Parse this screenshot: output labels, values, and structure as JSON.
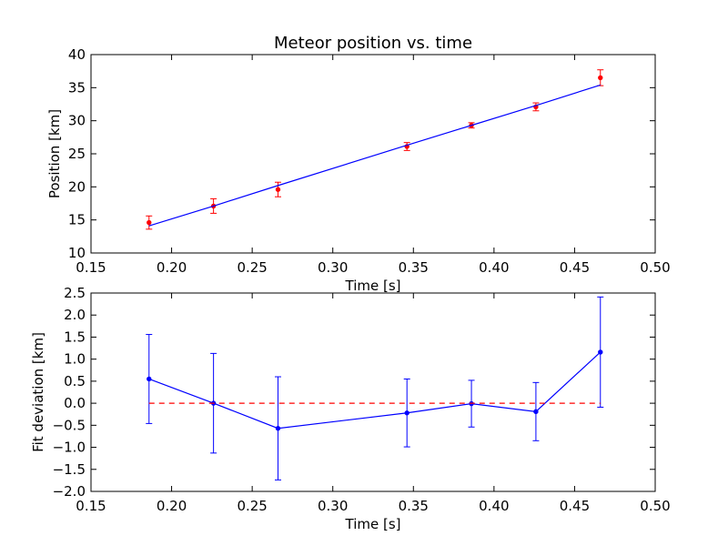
{
  "chart_data": [
    {
      "type": "scatter",
      "title": "Meteor position vs. time",
      "xlabel": "Time [s]",
      "ylabel": "Position [km]",
      "xlim": [
        0.15,
        0.5
      ],
      "ylim": [
        10,
        40
      ],
      "xticks": [
        0.15,
        0.2,
        0.25,
        0.3,
        0.35,
        0.4,
        0.45,
        0.5
      ],
      "xtick_labels": [
        "0.15",
        "0.20",
        "0.25",
        "0.30",
        "0.35",
        "0.40",
        "0.45",
        "0.50"
      ],
      "yticks": [
        10,
        15,
        20,
        25,
        30,
        35,
        40
      ],
      "ytick_labels": [
        "10",
        "15",
        "20",
        "25",
        "30",
        "35",
        "40"
      ],
      "grid": false,
      "series": [
        {
          "kind": "errorbar-points",
          "color": "#ff0000",
          "x": [
            0.186,
            0.226,
            0.266,
            0.346,
            0.386,
            0.426,
            0.466
          ],
          "y": [
            14.6,
            17.1,
            19.6,
            26.1,
            29.3,
            32.1,
            36.5
          ],
          "yerr": [
            1.0,
            1.1,
            1.1,
            0.6,
            0.4,
            0.6,
            1.2
          ]
        },
        {
          "kind": "line",
          "color": "#0000ff",
          "x": [
            0.186,
            0.226,
            0.266,
            0.346,
            0.386,
            0.426,
            0.466
          ],
          "y": [
            14.1,
            17.1,
            20.2,
            26.3,
            29.3,
            32.3,
            35.4
          ]
        }
      ]
    },
    {
      "type": "line",
      "title": "",
      "xlabel": "Time [s]",
      "ylabel": "Fit deviation [km]",
      "xlim": [
        0.15,
        0.5
      ],
      "ylim": [
        -2.0,
        2.5
      ],
      "xticks": [
        0.15,
        0.2,
        0.25,
        0.3,
        0.35,
        0.4,
        0.45,
        0.5
      ],
      "xtick_labels": [
        "0.15",
        "0.20",
        "0.25",
        "0.30",
        "0.35",
        "0.40",
        "0.45",
        "0.50"
      ],
      "yticks": [
        -2.0,
        -1.5,
        -1.0,
        -0.5,
        0.0,
        0.5,
        1.0,
        1.5,
        2.0,
        2.5
      ],
      "ytick_labels": [
        "−2.0",
        "−1.5",
        "−1.0",
        "−0.5",
        "0.0",
        "0.5",
        "1.0",
        "1.5",
        "2.0",
        "2.5"
      ],
      "grid": false,
      "series": [
        {
          "kind": "errorbar-line",
          "color": "#0000ff",
          "x": [
            0.186,
            0.226,
            0.266,
            0.346,
            0.386,
            0.426,
            0.466
          ],
          "y": [
            0.55,
            0.0,
            -0.57,
            -0.22,
            -0.01,
            -0.19,
            1.16
          ],
          "yerr": [
            1.01,
            1.13,
            1.17,
            0.77,
            0.53,
            0.66,
            1.25
          ]
        },
        {
          "kind": "dashed-line",
          "color": "#ff0000",
          "x": [
            0.186,
            0.466
          ],
          "y": [
            0.0,
            0.0
          ]
        }
      ]
    }
  ]
}
